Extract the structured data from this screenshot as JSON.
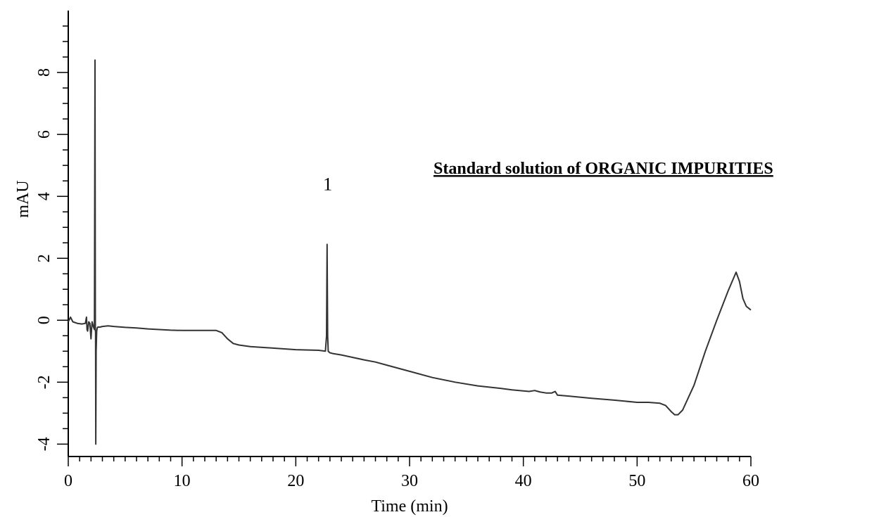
{
  "chart_data": {
    "type": "line",
    "title": "Standard solution of ORGANIC IMPURITIES",
    "xlabel": "Time (min)",
    "ylabel": "mAU",
    "xlim": [
      0,
      60
    ],
    "ylim": [
      -4.4,
      10.0
    ],
    "x_ticks": [
      0,
      10,
      20,
      30,
      40,
      50,
      60
    ],
    "y_ticks": [
      -4,
      -2,
      0,
      2,
      4,
      6,
      8
    ],
    "x_minor_step": 1,
    "y_minor_step": 0.5,
    "grid": false,
    "line_color": "#333333",
    "annotations": [
      {
        "text": "1",
        "x": 22.8,
        "y": 4.4
      }
    ],
    "series": [
      {
        "x": [
          0,
          0.2,
          0.4,
          0.8,
          1.2,
          1.5,
          1.6,
          1.65,
          1.7,
          1.8,
          1.9,
          2.0,
          2.05,
          2.1,
          2.2,
          2.3,
          2.35,
          2.38,
          2.4,
          2.42,
          2.45,
          2.5,
          2.55,
          2.6,
          2.8,
          3.0,
          3.5,
          4.0,
          5.0,
          6.0,
          7.0,
          8.0,
          9.0,
          10.0,
          11.0,
          12.0,
          13.0,
          13.5,
          14.0,
          14.5,
          15.0,
          16.0,
          18.0,
          20.0,
          22.0,
          22.6,
          22.7,
          22.75,
          22.8,
          22.85,
          22.9,
          23.0,
          23.3,
          24.0,
          25.0,
          26.0,
          27.0,
          28.0,
          29.0,
          30.0,
          32.0,
          34.0,
          36.0,
          38.0,
          39.0,
          40.0,
          40.5,
          41.0,
          41.5,
          42.0,
          42.5,
          42.8,
          43.0,
          44.0,
          46.0,
          48.0,
          50.0,
          51.0,
          52.0,
          52.5,
          53.0,
          53.3,
          53.6,
          54.0,
          55.0,
          56.0,
          57.0,
          58.0,
          58.7,
          59.0,
          59.3,
          59.6,
          60.0
        ],
        "y": [
          -0.05,
          0.1,
          -0.05,
          -0.1,
          -0.12,
          -0.1,
          0.1,
          -0.3,
          -0.35,
          -0.05,
          -0.1,
          -0.6,
          -0.3,
          -0.05,
          -0.2,
          -0.3,
          8.4,
          -0.3,
          -0.4,
          -4.0,
          -1.0,
          -0.35,
          -0.25,
          -0.22,
          -0.22,
          -0.2,
          -0.18,
          -0.2,
          -0.23,
          -0.25,
          -0.28,
          -0.3,
          -0.32,
          -0.33,
          -0.33,
          -0.33,
          -0.33,
          -0.4,
          -0.6,
          -0.75,
          -0.8,
          -0.85,
          -0.9,
          -0.95,
          -0.97,
          -1.0,
          -0.5,
          2.45,
          -0.5,
          -1.0,
          -1.02,
          -1.05,
          -1.08,
          -1.12,
          -1.2,
          -1.28,
          -1.35,
          -1.45,
          -1.55,
          -1.65,
          -1.85,
          -2.0,
          -2.12,
          -2.2,
          -2.25,
          -2.28,
          -2.3,
          -2.27,
          -2.32,
          -2.35,
          -2.35,
          -2.3,
          -2.42,
          -2.45,
          -2.52,
          -2.58,
          -2.65,
          -2.65,
          -2.68,
          -2.75,
          -2.95,
          -3.05,
          -3.05,
          -2.9,
          -2.1,
          -1.0,
          0.0,
          0.95,
          1.55,
          1.25,
          0.7,
          0.45,
          0.33
        ]
      }
    ]
  }
}
